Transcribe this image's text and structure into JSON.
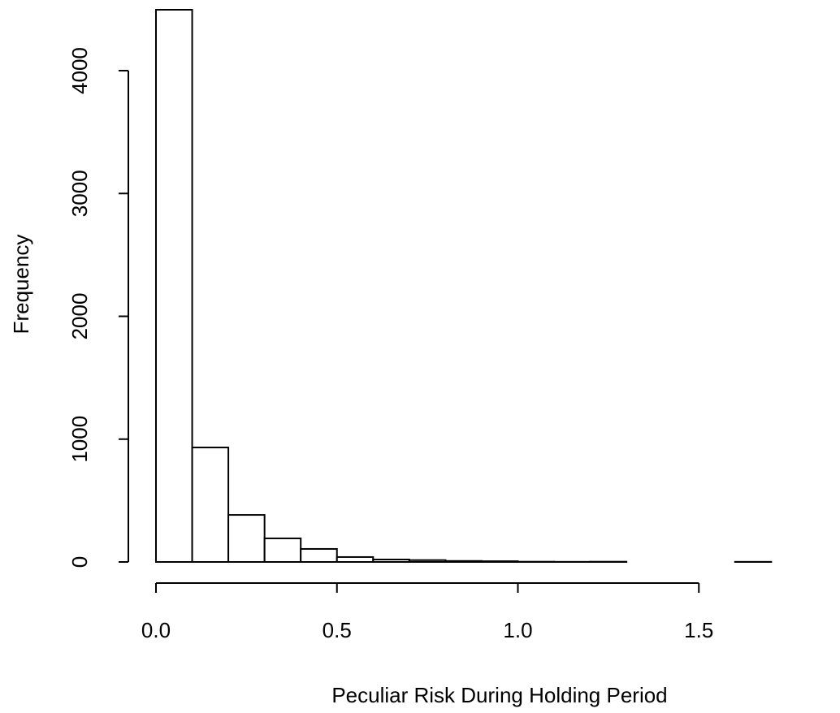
{
  "chart_data": {
    "type": "histogram",
    "x_label": "Peculiar Risk During Holding Period",
    "y_label": "Frequency",
    "bins": [
      0,
      0.1,
      0.2,
      0.3,
      0.4,
      0.5,
      0.6,
      0.7,
      0.8,
      0.9,
      1.0,
      1.1,
      1.2,
      1.3,
      1.4,
      1.5,
      1.6,
      1.7,
      1.8,
      1.9
    ],
    "values": [
      4496,
      932,
      383,
      192,
      106,
      40,
      20,
      15,
      8,
      6,
      2,
      1,
      2,
      0,
      0,
      0,
      1,
      0,
      0
    ],
    "xlim": [
      0,
      1.89
    ],
    "ylim": [
      0,
      4500
    ],
    "xticks": [
      {
        "value": 0,
        "label": "0.0"
      },
      0.5,
      {
        "value": 1,
        "label": "1.0"
      },
      1.5
    ],
    "yticks": [
      0,
      1000,
      2000,
      3000,
      4000
    ]
  }
}
